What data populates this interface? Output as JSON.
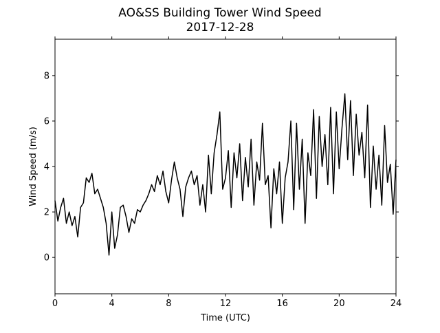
{
  "chart_data": {
    "type": "line",
    "title": "AO&SS Building Tower Wind Speed",
    "subtitle": "2017-12-28",
    "x_label": "Time (UTC)",
    "y_label": "Wind Speed (m/s)",
    "x": [
      0,
      0.2,
      0.4,
      0.6,
      0.8,
      1.0,
      1.2,
      1.4,
      1.6,
      1.8,
      2.0,
      2.2,
      2.4,
      2.6,
      2.8,
      3.0,
      3.2,
      3.4,
      3.6,
      3.8,
      4.0,
      4.2,
      4.4,
      4.6,
      4.8,
      5.0,
      5.2,
      5.4,
      5.6,
      5.8,
      6.0,
      6.2,
      6.4,
      6.6,
      6.8,
      7.0,
      7.2,
      7.4,
      7.6,
      7.8,
      8.0,
      8.2,
      8.4,
      8.6,
      8.8,
      9.0,
      9.2,
      9.4,
      9.6,
      9.8,
      10.0,
      10.2,
      10.4,
      10.6,
      10.8,
      11.0,
      11.2,
      11.4,
      11.6,
      11.8,
      12.0,
      12.2,
      12.4,
      12.6,
      12.8,
      13.0,
      13.2,
      13.4,
      13.6,
      13.8,
      14.0,
      14.2,
      14.4,
      14.6,
      14.8,
      15.0,
      15.2,
      15.4,
      15.6,
      15.8,
      16.0,
      16.2,
      16.4,
      16.6,
      16.8,
      17.0,
      17.2,
      17.4,
      17.6,
      17.8,
      18.0,
      18.2,
      18.4,
      18.6,
      18.8,
      19.0,
      19.2,
      19.4,
      19.6,
      19.8,
      20.0,
      20.2,
      20.4,
      20.6,
      20.8,
      21.0,
      21.2,
      21.4,
      21.6,
      21.8,
      22.0,
      22.2,
      22.4,
      22.6,
      22.8,
      23.0,
      23.2,
      23.4,
      23.6,
      23.8,
      24.0
    ],
    "series": [
      {
        "name": "Wind Speed",
        "color": "#000000",
        "values": [
          2.5,
          1.6,
          2.2,
          2.6,
          1.5,
          2.0,
          1.4,
          1.8,
          0.9,
          2.2,
          2.4,
          3.5,
          3.3,
          3.7,
          2.8,
          3.0,
          2.6,
          2.2,
          1.5,
          0.1,
          2.0,
          0.4,
          1.0,
          2.2,
          2.3,
          1.8,
          1.1,
          1.7,
          1.5,
          2.1,
          2.0,
          2.3,
          2.5,
          2.8,
          3.2,
          2.9,
          3.6,
          3.2,
          3.8,
          2.9,
          2.4,
          3.4,
          4.2,
          3.5,
          3.0,
          1.8,
          3.1,
          3.5,
          3.8,
          3.2,
          3.6,
          2.3,
          3.2,
          2.0,
          4.5,
          2.8,
          4.6,
          5.4,
          6.4,
          3.0,
          3.5,
          4.7,
          2.2,
          4.6,
          3.5,
          5.0,
          2.5,
          4.4,
          3.1,
          5.2,
          2.3,
          4.2,
          3.4,
          5.9,
          3.2,
          3.6,
          1.3,
          3.9,
          2.8,
          4.2,
          1.5,
          3.5,
          4.2,
          6.0,
          2.1,
          5.9,
          3.0,
          5.2,
          1.5,
          4.6,
          3.6,
          6.5,
          2.6,
          6.2,
          4.0,
          5.4,
          3.2,
          6.6,
          2.8,
          6.4,
          3.9,
          5.7,
          7.2,
          4.3,
          6.9,
          3.6,
          6.3,
          4.5,
          5.5,
          3.5,
          6.7,
          2.2,
          4.9,
          3.0,
          4.5,
          2.3,
          5.8,
          3.3,
          4.1,
          1.9,
          4.3
        ]
      }
    ],
    "xlim": [
      0,
      24
    ],
    "xticks": [
      0,
      4,
      8,
      12,
      16,
      20,
      24
    ],
    "ylim": [
      -1.6,
      9.6
    ],
    "yticks": [
      0,
      2,
      4,
      6,
      8
    ]
  }
}
